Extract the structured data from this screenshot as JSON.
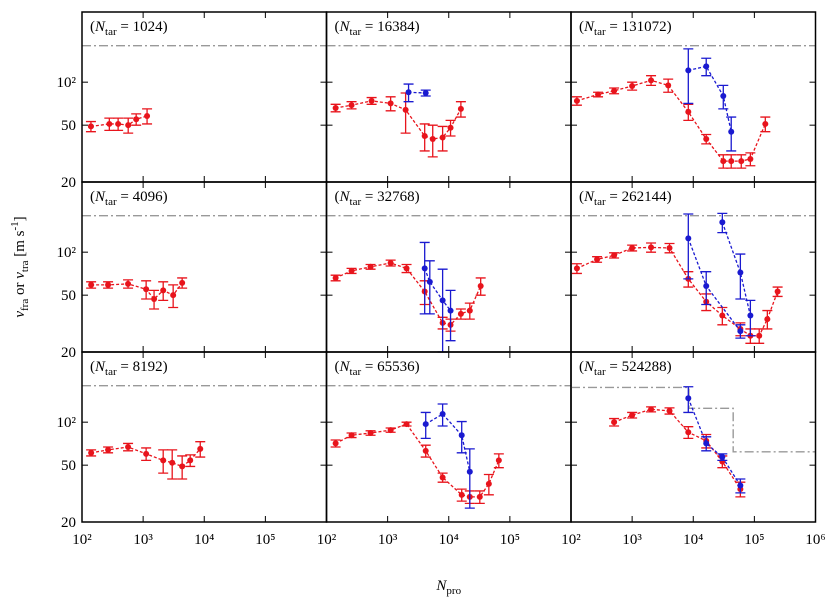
{
  "chart_data": [
    {
      "type": "scatter",
      "title": [
        "(",
        "N",
        "tar",
        " = 1024)"
      ],
      "xscale": "log",
      "yscale": "log",
      "xlim": [
        100,
        1000000
      ],
      "ylim": [
        20,
        310
      ],
      "xticks": [
        100,
        1000,
        10000,
        100000,
        1000000
      ],
      "yticks": [
        20,
        50,
        {
          "value": 100,
          "label": "10²"
        }
      ],
      "reference": {
        "color": "#999999",
        "x": [
          100,
          1000000
        ],
        "values": [
          180,
          180
        ]
      },
      "series": [
        {
          "color": "#e8141c",
          "x": [
            140,
            280,
            390,
            570,
            770,
            1160
          ],
          "values": [
            49,
            51,
            51,
            50,
            55,
            58
          ],
          "yerr": [
            4,
            5,
            5,
            6,
            5,
            7
          ]
        }
      ]
    },
    {
      "type": "scatter",
      "title": [
        "(",
        "N",
        "tar",
        " = 16384)"
      ],
      "xscale": "log",
      "yscale": "log",
      "xlim": [
        100,
        1000000
      ],
      "ylim": [
        20,
        310
      ],
      "xticks": [
        100,
        1000,
        10000,
        100000,
        1000000
      ],
      "yticks": [
        20,
        50,
        100
      ],
      "reference": {
        "color": "#999999",
        "x": [
          100,
          1000000
        ],
        "values": [
          180,
          180
        ]
      },
      "series": [
        {
          "color": "#e8141c",
          "x": [
            141,
            257,
            547,
            1120,
            1970,
            4040,
            5470,
            7940,
            10700,
            15800
          ],
          "values": [
            66,
            69,
            74,
            71,
            64,
            42,
            40,
            41,
            48,
            65
          ],
          "yerr": [
            4,
            4,
            4,
            8,
            20,
            9,
            10,
            8,
            6,
            8
          ]
        },
        {
          "color": "#1a1ad0",
          "x": [
            2200,
            4200
          ],
          "values": [
            85,
            84
          ],
          "yerr": [
            12,
            4
          ]
        }
      ]
    },
    {
      "type": "scatter",
      "title": [
        "(",
        "N",
        "tar",
        " = 131072)"
      ],
      "xscale": "log",
      "yscale": "log",
      "xlim": [
        100,
        1000000
      ],
      "ylim": [
        20,
        310
      ],
      "xticks": [
        100,
        1000,
        10000,
        100000,
        1000000
      ],
      "yticks": [
        20,
        50,
        100
      ],
      "reference": {
        "color": "#999999",
        "x": [
          100,
          1000000
        ],
        "values": [
          180,
          180
        ]
      },
      "series": [
        {
          "color": "#e8141c",
          "x": [
            125,
            277,
            507,
            1000,
            2040,
            3890,
            8300,
            16300,
            31000,
            41800,
            61000,
            86000,
            151000
          ],
          "values": [
            74,
            82,
            87,
            94,
            103,
            95,
            62,
            40,
            28,
            28,
            28,
            29,
            51
          ],
          "yerr": [
            5,
            3,
            4,
            6,
            8,
            10,
            8,
            3,
            3,
            3,
            3,
            3,
            6
          ]
        },
        {
          "color": "#1a1ad0",
          "x": [
            8300,
            16300,
            31000,
            41800
          ],
          "values": [
            121,
            129,
            80,
            45
          ],
          "yerr": [
            50,
            18,
            15,
            12
          ]
        }
      ]
    },
    {
      "type": "scatter",
      "title": [
        "(",
        "N",
        "tar",
        " = 4096)"
      ],
      "xscale": "log",
      "yscale": "log",
      "xlim": [
        100,
        1000000
      ],
      "ylim": [
        20,
        310
      ],
      "xticks": [
        100,
        1000,
        10000,
        100000,
        1000000
      ],
      "yticks": [
        20,
        50,
        {
          "value": 100,
          "label": "10²"
        }
      ],
      "ylabel": [
        [
          "v",
          "i"
        ],
        [
          "fra",
          "sub"
        ],
        [
          " or ",
          ""
        ],
        [
          "v",
          "i"
        ],
        [
          "tra",
          "sub"
        ],
        [
          " [m s",
          ""
        ],
        [
          "-1",
          "sup"
        ],
        [
          "]",
          ""
        ]
      ],
      "reference": {
        "color": "#999999",
        "x": [
          100,
          1000000
        ],
        "values": [
          180,
          180
        ]
      },
      "series": [
        {
          "color": "#e8141c",
          "x": [
            141,
            267,
            567,
            1120,
            1510,
            2130,
            3100,
            4350
          ],
          "values": [
            59,
            59,
            60,
            55,
            47,
            54,
            50,
            61
          ],
          "yerr": [
            3,
            3,
            4,
            8,
            7,
            8,
            9,
            5
          ]
        }
      ]
    },
    {
      "type": "scatter",
      "title": [
        "(",
        "N",
        "tar",
        " = 32768)"
      ],
      "xscale": "log",
      "yscale": "log",
      "xlim": [
        100,
        1000000
      ],
      "ylim": [
        20,
        310
      ],
      "xticks": [
        100,
        1000,
        10000,
        100000,
        1000000
      ],
      "yticks": [
        20,
        50,
        100
      ],
      "reference": {
        "color": "#999999",
        "x": [
          100,
          1000000
        ],
        "values": [
          180,
          180
        ]
      },
      "series": [
        {
          "color": "#e8141c",
          "x": [
            141,
            257,
            526,
            1120,
            2040,
            4040,
            7940,
            10700,
            15800,
            22100,
            33300
          ],
          "values": [
            66,
            74,
            79,
            84,
            77,
            53,
            32,
            31,
            37,
            39,
            58
          ],
          "yerr": [
            3,
            3,
            3,
            4,
            5,
            10,
            3,
            3,
            3,
            5,
            8
          ]
        },
        {
          "color": "#1a1ad0",
          "x": [
            4040,
            4900,
            7940,
            10700
          ],
          "values": [
            77,
            62,
            46,
            39
          ],
          "yerr": [
            40,
            25,
            30,
            15
          ]
        }
      ]
    },
    {
      "type": "scatter",
      "title": [
        "(",
        "N",
        "tar",
        " = 262144)"
      ],
      "xscale": "log",
      "yscale": "log",
      "xlim": [
        100,
        1000000
      ],
      "ylim": [
        20,
        310
      ],
      "xticks": [
        100,
        1000,
        10000,
        100000,
        1000000
      ],
      "yticks": [
        20,
        50,
        100
      ],
      "reference": {
        "color": "#999999",
        "x": [
          100,
          1000000
        ],
        "values": [
          180,
          180
        ]
      },
      "series": [
        {
          "color": "#e8141c",
          "x": [
            125,
            267,
            507,
            1000,
            2040,
            4090,
            8300,
            16300,
            29900,
            59000,
            86000,
            120000,
            163000,
            240000
          ],
          "values": [
            77,
            89,
            95,
            107,
            108,
            107,
            65,
            45,
            36,
            29,
            26,
            26,
            34,
            53
          ],
          "yerr": [
            6,
            4,
            4,
            5,
            8,
            8,
            8,
            6,
            5,
            3,
            3,
            3,
            5,
            4
          ]
        },
        {
          "color": "#1a1ad0",
          "x": [
            8300,
            16300,
            59000
          ],
          "values": [
            125,
            58,
            28
          ],
          "yerr": [
            60,
            15,
            3
          ]
        },
        {
          "color": "#1a1ad0",
          "x": [
            29900,
            59000,
            86000
          ],
          "values": [
            162,
            72,
            36
          ],
          "yerr": [
            25,
            25,
            10
          ]
        }
      ]
    },
    {
      "type": "scatter",
      "title": [
        "(",
        "N",
        "tar",
        " = 8192)"
      ],
      "xscale": "log",
      "yscale": "log",
      "xlim": [
        100,
        1000000
      ],
      "ylim": [
        20,
        310
      ],
      "xticks": [
        {
          "value": 100,
          "label": "10²"
        },
        {
          "value": 1000,
          "label": "10³"
        },
        {
          "value": 10000,
          "label": "10⁴"
        },
        {
          "value": 100000,
          "label": "10⁵"
        }
      ],
      "yticks": [
        20,
        50,
        {
          "value": 100,
          "label": "10²"
        }
      ],
      "reference": {
        "color": "#999999",
        "x": [
          100,
          1000000
        ],
        "values": [
          180,
          180
        ]
      },
      "series": [
        {
          "color": "#e8141c",
          "x": [
            141,
            267,
            567,
            1120,
            2130,
            2990,
            4350,
            5890,
            8600
          ],
          "values": [
            61,
            64,
            67,
            60,
            54,
            52,
            49,
            54,
            65
          ],
          "yerr": [
            3,
            3,
            4,
            6,
            10,
            12,
            9,
            5,
            8
          ]
        }
      ]
    },
    {
      "type": "scatter",
      "title": [
        "(",
        "N",
        "tar",
        " = 65536)"
      ],
      "xscale": "log",
      "yscale": "log",
      "xlim": [
        100,
        1000000
      ],
      "ylim": [
        20,
        310
      ],
      "xticks": [
        {
          "value": 100,
          "label": "10²"
        },
        {
          "value": 1000,
          "label": "10³"
        },
        {
          "value": 10000,
          "label": "10⁴"
        },
        {
          "value": 100000,
          "label": "10⁵"
        }
      ],
      "yticks": [
        20,
        50,
        100
      ],
      "xlabel": [
        "N",
        "pro"
      ],
      "reference": {
        "color": "#999999",
        "x": [
          100,
          1000000
        ],
        "values": [
          180,
          180
        ]
      },
      "series": [
        {
          "color": "#e8141c",
          "x": [
            141,
            257,
            526,
            1120,
            2040,
            4200,
            7940,
            16300,
            22100,
            32200,
            45300,
            66000
          ],
          "values": [
            71,
            81,
            84,
            88,
            97,
            63,
            41,
            31,
            30,
            30,
            37,
            54
          ],
          "yerr": [
            4,
            3,
            3,
            3,
            3,
            6,
            3,
            3,
            3,
            3,
            6,
            6
          ]
        },
        {
          "color": "#1a1ad0",
          "x": [
            4200,
            7940,
            16300,
            22100
          ],
          "values": [
            97,
            114,
            81,
            45
          ],
          "yerr": [
            20,
            20,
            20,
            20
          ]
        }
      ]
    },
    {
      "type": "scatter",
      "title": [
        "(",
        "N",
        "tar",
        " = 524288)"
      ],
      "xscale": "log",
      "yscale": "log",
      "xlim": [
        100,
        1000000
      ],
      "ylim": [
        20,
        310
      ],
      "xticks": [
        {
          "value": 100,
          "label": "10²"
        },
        {
          "value": 1000,
          "label": "10³"
        },
        {
          "value": 10000,
          "label": "10⁴"
        },
        {
          "value": 100000,
          "label": "10⁵"
        },
        {
          "value": 1000000,
          "label": "10⁶"
        }
      ],
      "yticks": [
        20,
        50,
        100
      ],
      "reference": {
        "color": "#999999",
        "x": [
          100,
          8500,
          8500,
          45000,
          45000,
          1000000
        ],
        "values": [
          175,
          175,
          125,
          125,
          62,
          62
        ]
      },
      "series": [
        {
          "color": "#e8141c",
          "x": [
            507,
            1000,
            2040,
            4090,
            8300,
            16300,
            29900,
            59000
          ],
          "values": [
            100,
            112,
            123,
            120,
            85,
            74,
            53,
            34
          ],
          "yerr": [
            6,
            5,
            5,
            6,
            8,
            8,
            5,
            4
          ]
        },
        {
          "color": "#1a1ad0",
          "x": [
            8300,
            16300,
            29900,
            59000
          ],
          "values": [
            147,
            71,
            57,
            36
          ],
          "yerr": [
            30,
            8,
            3,
            4
          ]
        }
      ]
    }
  ]
}
